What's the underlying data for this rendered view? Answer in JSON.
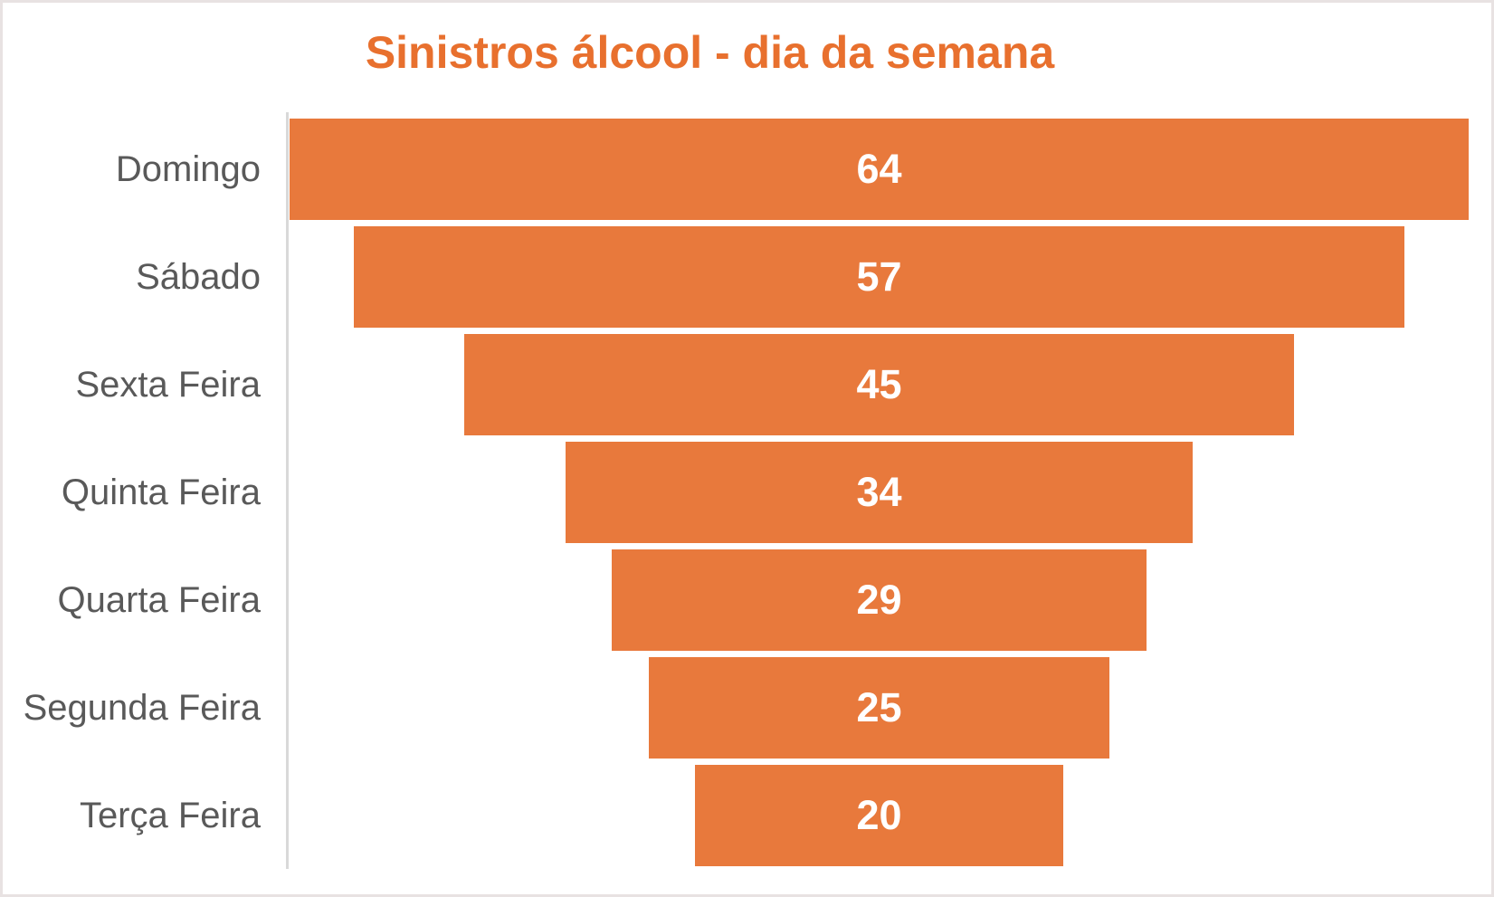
{
  "title": "Sinistros álcool - dia da semana",
  "colors": {
    "title": "#e8702e",
    "bar": "#e8793c",
    "category_label": "#595959",
    "value_label": "#ffffff",
    "axis_line": "#d9d9d9",
    "background": "#ffffff",
    "border": "#e8e2e2"
  },
  "chart_data": {
    "type": "bar",
    "variant": "funnel-centered-horizontal",
    "title": "Sinistros álcool - dia da semana",
    "categories": [
      "Domingo",
      "Sábado",
      "Sexta Feira",
      "Quinta Feira",
      "Quarta Feira",
      "Segunda Feira",
      "Terça Feira"
    ],
    "values": [
      64,
      57,
      45,
      34,
      29,
      25,
      20
    ],
    "xlabel": "",
    "ylabel": "",
    "xlim": [
      0,
      64
    ],
    "grid": false,
    "legend": false,
    "value_labels_position": "inside-center",
    "category_axis_side": "left"
  }
}
